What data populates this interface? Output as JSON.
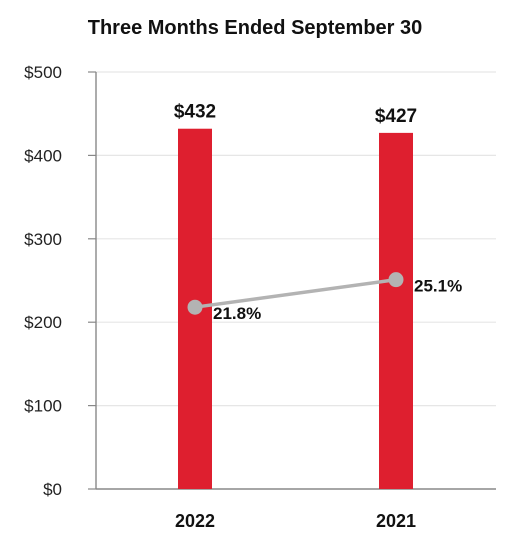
{
  "chart_data": {
    "type": "bar",
    "title": "Three Months Ended September 30",
    "categories": [
      "2022",
      "2021"
    ],
    "series": [
      {
        "values": [
          432,
          427
        ],
        "labels": [
          "$432",
          "$427"
        ],
        "color": "#de1f2f"
      }
    ],
    "line_series": [
      {
        "values": [
          21.8,
          25.1
        ],
        "labels": [
          "21.8%",
          "25.1%"
        ],
        "color": "#b3b3b3"
      }
    ],
    "yticks": [
      "$0",
      "$100",
      "$200",
      "$300",
      "$400",
      "$500"
    ],
    "ylim": [
      0,
      500
    ],
    "grid": true,
    "legend": "none"
  }
}
